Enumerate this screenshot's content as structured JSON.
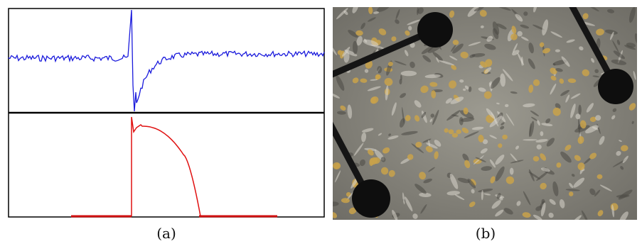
{
  "panels": [
    {
      "label": "(a)"
    },
    {
      "label": "(b)"
    }
  ]
}
